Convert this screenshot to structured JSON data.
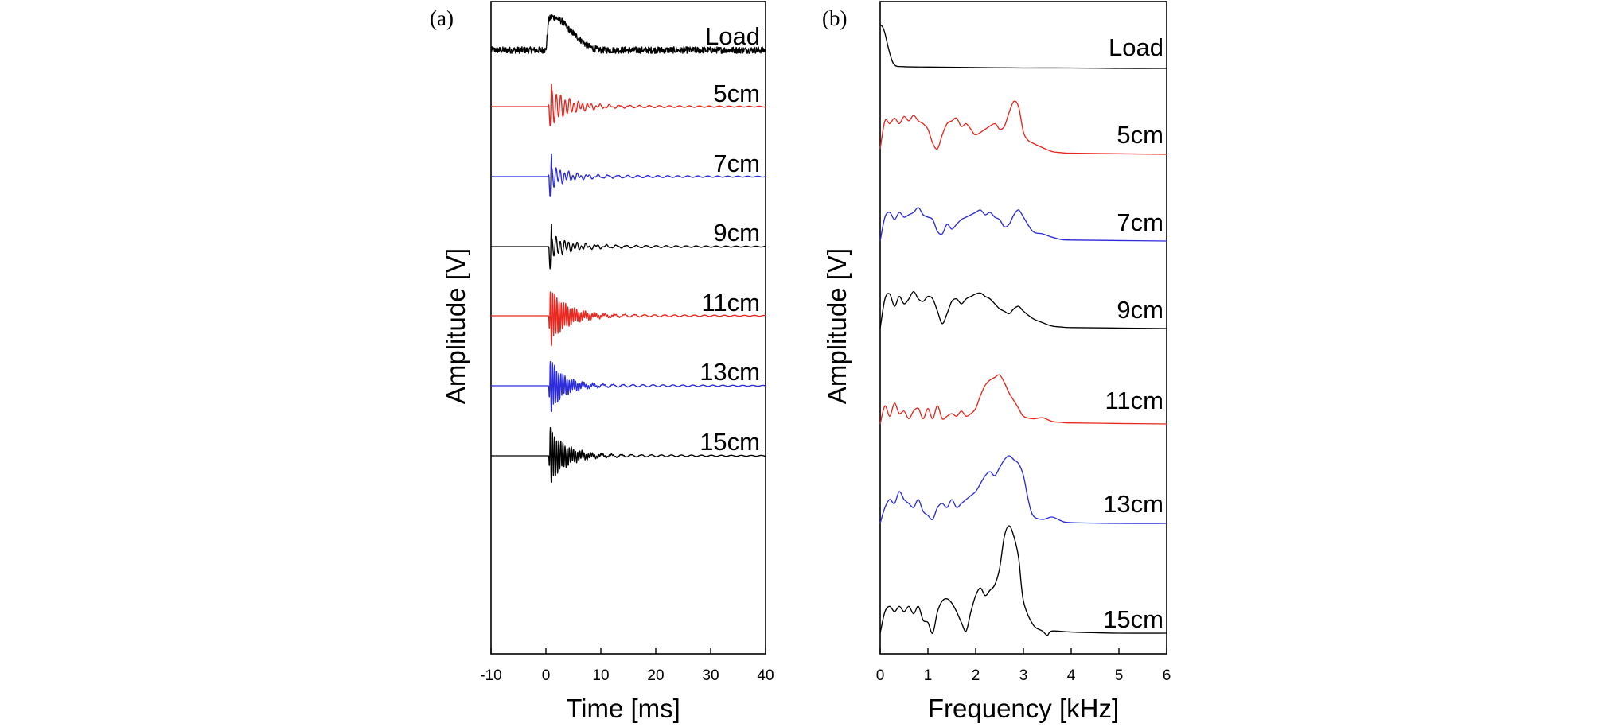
{
  "chart_data": [
    {
      "panel": "(a)",
      "type": "line",
      "xlabel": "Time [ms]",
      "ylabel": "Amplitude [V]",
      "xlim": [
        -10,
        40
      ],
      "xticks": [
        -10,
        0,
        10,
        20,
        30,
        40
      ],
      "yticks": false,
      "series": [
        {
          "name": "Load",
          "color": "#000000",
          "kind": "load",
          "x": [
            -10,
            0,
            0.5,
            1,
            2,
            3,
            4,
            5,
            6,
            7,
            8,
            9,
            10,
            40
          ],
          "y": [
            0,
            0,
            0.9,
            1.0,
            0.95,
            0.85,
            0.65,
            0.5,
            0.35,
            0.2,
            0.1,
            0.03,
            0,
            0
          ]
        },
        {
          "name": "5cm",
          "color": "#e8271f",
          "kind": "time",
          "onset_ms": 0.5,
          "first_peak": -1.0,
          "ring_amp": 0.55,
          "ring_freq_khz": 1.25,
          "decay_ms": 3.5
        },
        {
          "name": "7cm",
          "color": "#2b2bd9",
          "kind": "time",
          "onset_ms": 0.5,
          "first_peak": -1.0,
          "ring_amp": 0.35,
          "ring_freq_khz": 1.3,
          "decay_ms": 3.0
        },
        {
          "name": "9cm",
          "color": "#000000",
          "kind": "time",
          "onset_ms": 0.5,
          "first_peak": -1.0,
          "ring_amp": 0.35,
          "ring_freq_khz": 1.3,
          "decay_ms": 3.5
        },
        {
          "name": "11cm",
          "color": "#e8271f",
          "kind": "time",
          "onset_ms": 0.5,
          "first_peak": -0.95,
          "ring_amp": 0.85,
          "ring_freq_khz": 2.5,
          "decay_ms": 3.2
        },
        {
          "name": "13cm",
          "color": "#2b2bd9",
          "kind": "time",
          "onset_ms": 0.5,
          "first_peak": -0.95,
          "ring_amp": 0.85,
          "ring_freq_khz": 2.6,
          "decay_ms": 2.6
        },
        {
          "name": "15cm",
          "color": "#000000",
          "kind": "time",
          "onset_ms": 0.5,
          "first_peak": -1.0,
          "ring_amp": 0.8,
          "ring_freq_khz": 2.6,
          "decay_ms": 3.0
        }
      ]
    },
    {
      "panel": "(b)",
      "type": "line",
      "xlabel": "Frequency [kHz]",
      "ylabel": "Amplitude [V]",
      "xlim": [
        0,
        6
      ],
      "xticks": [
        0,
        1,
        2,
        3,
        4,
        5,
        6
      ],
      "yticks": false,
      "series": [
        {
          "name": "Load",
          "color": "#000000",
          "x": [
            0,
            0.05,
            0.1,
            0.2,
            0.3,
            0.5,
            1,
            2,
            3,
            4,
            5,
            6
          ],
          "y": [
            1.0,
            0.95,
            0.8,
            0.35,
            0.08,
            0.04,
            0.03,
            0.02,
            0.01,
            0.01,
            0.0,
            0.0
          ]
        },
        {
          "name": "5cm",
          "color": "#e8271f",
          "x": [
            0,
            0.1,
            0.2,
            0.3,
            0.4,
            0.5,
            0.6,
            0.7,
            0.8,
            0.9,
            1.0,
            1.1,
            1.2,
            1.3,
            1.4,
            1.5,
            1.6,
            1.7,
            1.8,
            1.9,
            2.0,
            2.2,
            2.4,
            2.5,
            2.6,
            2.7,
            2.8,
            2.9,
            3.0,
            3.1,
            3.2,
            3.4,
            3.6,
            3.8,
            4.0,
            5.0,
            6.0
          ],
          "y": [
            0.1,
            0.6,
            0.55,
            0.65,
            0.55,
            0.68,
            0.6,
            0.7,
            0.6,
            0.55,
            0.45,
            0.2,
            0.1,
            0.35,
            0.55,
            0.6,
            0.65,
            0.5,
            0.55,
            0.45,
            0.35,
            0.45,
            0.55,
            0.45,
            0.5,
            0.75,
            0.95,
            0.85,
            0.4,
            0.25,
            0.2,
            0.12,
            0.05,
            0.03,
            0.02,
            0.01,
            0.0
          ]
        },
        {
          "name": "7cm",
          "color": "#2b2bd9",
          "x": [
            0,
            0.1,
            0.2,
            0.3,
            0.4,
            0.5,
            0.6,
            0.7,
            0.8,
            0.9,
            1.0,
            1.1,
            1.2,
            1.3,
            1.4,
            1.5,
            1.6,
            1.7,
            1.8,
            1.9,
            2.0,
            2.1,
            2.2,
            2.3,
            2.4,
            2.5,
            2.6,
            2.7,
            2.8,
            2.9,
            3.0,
            3.2,
            3.4,
            3.6,
            3.8,
            4.0,
            5.0,
            6.0
          ],
          "y": [
            0.0,
            0.5,
            0.6,
            0.45,
            0.6,
            0.5,
            0.55,
            0.6,
            0.7,
            0.55,
            0.5,
            0.45,
            0.2,
            0.15,
            0.35,
            0.25,
            0.35,
            0.45,
            0.5,
            0.55,
            0.6,
            0.65,
            0.55,
            0.6,
            0.5,
            0.45,
            0.3,
            0.35,
            0.55,
            0.65,
            0.5,
            0.2,
            0.15,
            0.08,
            0.03,
            0.02,
            0.01,
            0.0
          ]
        },
        {
          "name": "9cm",
          "color": "#000000",
          "x": [
            0,
            0.1,
            0.2,
            0.3,
            0.4,
            0.5,
            0.6,
            0.7,
            0.8,
            0.9,
            1.0,
            1.1,
            1.2,
            1.3,
            1.4,
            1.5,
            1.6,
            1.7,
            1.8,
            1.9,
            2.0,
            2.1,
            2.2,
            2.3,
            2.4,
            2.5,
            2.6,
            2.7,
            2.8,
            2.9,
            3.0,
            3.2,
            3.4,
            3.6,
            3.8,
            4.0,
            5.0,
            6.0
          ],
          "y": [
            0.0,
            0.6,
            0.7,
            0.45,
            0.65,
            0.5,
            0.6,
            0.75,
            0.6,
            0.55,
            0.65,
            0.6,
            0.35,
            0.1,
            0.3,
            0.55,
            0.6,
            0.5,
            0.6,
            0.65,
            0.7,
            0.72,
            0.65,
            0.6,
            0.5,
            0.4,
            0.35,
            0.3,
            0.4,
            0.45,
            0.35,
            0.2,
            0.12,
            0.05,
            0.03,
            0.02,
            0.01,
            0.0
          ]
        },
        {
          "name": "11cm",
          "color": "#e8271f",
          "x": [
            0,
            0.1,
            0.2,
            0.3,
            0.4,
            0.5,
            0.6,
            0.7,
            0.8,
            0.9,
            1.0,
            1.1,
            1.2,
            1.3,
            1.4,
            1.5,
            1.6,
            1.7,
            1.8,
            1.9,
            2.0,
            2.1,
            2.2,
            2.3,
            2.4,
            2.5,
            2.6,
            2.7,
            2.8,
            2.9,
            3.0,
            3.2,
            3.4,
            3.6,
            3.8,
            4.0,
            5.0,
            6.0
          ],
          "y": [
            0.0,
            0.35,
            0.15,
            0.4,
            0.2,
            0.25,
            0.1,
            0.25,
            0.3,
            0.1,
            0.3,
            0.1,
            0.35,
            0.1,
            0.15,
            0.2,
            0.15,
            0.25,
            0.15,
            0.2,
            0.3,
            0.55,
            0.75,
            0.85,
            0.9,
            0.95,
            0.8,
            0.6,
            0.45,
            0.3,
            0.15,
            0.1,
            0.12,
            0.05,
            0.03,
            0.02,
            0.01,
            0.0
          ]
        },
        {
          "name": "13cm",
          "color": "#2b2bd9",
          "x": [
            0,
            0.1,
            0.2,
            0.3,
            0.4,
            0.5,
            0.6,
            0.7,
            0.8,
            0.9,
            1.0,
            1.1,
            1.2,
            1.3,
            1.4,
            1.5,
            1.6,
            1.7,
            1.8,
            1.9,
            2.0,
            2.1,
            2.2,
            2.3,
            2.4,
            2.5,
            2.6,
            2.7,
            2.8,
            2.9,
            3.0,
            3.1,
            3.2,
            3.4,
            3.6,
            3.8,
            4.0,
            5.0,
            6.0
          ],
          "y": [
            0.0,
            0.2,
            0.3,
            0.25,
            0.4,
            0.3,
            0.25,
            0.2,
            0.3,
            0.15,
            0.1,
            0.05,
            0.2,
            0.25,
            0.2,
            0.3,
            0.2,
            0.25,
            0.3,
            0.35,
            0.4,
            0.5,
            0.6,
            0.65,
            0.6,
            0.7,
            0.8,
            0.85,
            0.8,
            0.75,
            0.6,
            0.3,
            0.1,
            0.05,
            0.08,
            0.03,
            0.01,
            0.0,
            0.0
          ]
        },
        {
          "name": "15cm",
          "color": "#000000",
          "x": [
            0,
            0.1,
            0.2,
            0.3,
            0.4,
            0.5,
            0.6,
            0.7,
            0.8,
            0.9,
            1.0,
            1.1,
            1.2,
            1.3,
            1.4,
            1.5,
            1.6,
            1.7,
            1.8,
            1.9,
            2.0,
            2.1,
            2.2,
            2.3,
            2.4,
            2.5,
            2.6,
            2.7,
            2.8,
            2.9,
            3.0,
            3.2,
            3.4,
            3.5,
            3.6,
            4.0,
            5.0,
            6.0
          ],
          "y": [
            0.0,
            0.2,
            0.25,
            0.2,
            0.25,
            0.2,
            0.25,
            0.18,
            0.25,
            0.12,
            0.1,
            0.0,
            0.2,
            0.3,
            0.32,
            0.28,
            0.2,
            0.1,
            0.02,
            0.2,
            0.35,
            0.42,
            0.35,
            0.4,
            0.45,
            0.6,
            0.9,
            1.0,
            0.9,
            0.7,
            0.3,
            0.08,
            0.02,
            -0.02,
            0.02,
            0.01,
            0.0,
            0.0
          ]
        }
      ]
    }
  ]
}
